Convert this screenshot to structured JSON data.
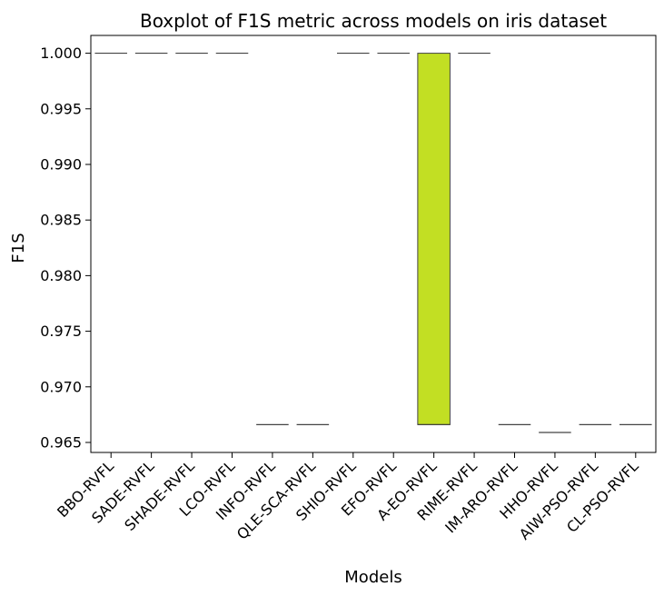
{
  "chart_data": {
    "type": "boxplot",
    "title": "Boxplot of F1S metric across models on iris dataset",
    "xlabel": "Models",
    "ylabel": "F1S",
    "ylim": [
      0.9641,
      1.0016
    ],
    "yticks": [
      1.0,
      0.995,
      0.99,
      0.985,
      0.98,
      0.975,
      0.97,
      0.965
    ],
    "ytick_labels": [
      "1.000",
      "0.995",
      "0.990",
      "0.985",
      "0.980",
      "0.975",
      "0.970",
      "0.965"
    ],
    "grid": false,
    "legend": "none",
    "categories": [
      "BBO-RVFL",
      "SADE-RVFL",
      "SHADE-RVFL",
      "LCO-RVFL",
      "INFO-RVFL",
      "QLE-SCA-RVFL",
      "SHIO-RVFL",
      "EFO-RVFL",
      "A-EO-RVFL",
      "RIME-RVFL",
      "IM-ARO-RVFL",
      "HHO-RVFL",
      "AIW-PSO-RVFL",
      "CL-PSO-RVFL"
    ],
    "colors": [
      "#1f9e89",
      "#26a784",
      "#35b779",
      "#48c16e",
      "#5ec962",
      "#75d054",
      "#8fd744",
      "#a8db34",
      "#c2df23",
      "#dde318",
      "#d9ea80",
      "#d6e67a",
      "#d8e8a0",
      "#e2ec9a"
    ],
    "boxes": [
      {
        "min": 1.0,
        "q1": 1.0,
        "median": 1.0,
        "q3": 1.0,
        "max": 1.0
      },
      {
        "min": 1.0,
        "q1": 1.0,
        "median": 1.0,
        "q3": 1.0,
        "max": 1.0
      },
      {
        "min": 1.0,
        "q1": 1.0,
        "median": 1.0,
        "q3": 1.0,
        "max": 1.0
      },
      {
        "min": 1.0,
        "q1": 1.0,
        "median": 1.0,
        "q3": 1.0,
        "max": 1.0
      },
      {
        "min": 0.9666,
        "q1": 0.9666,
        "median": 0.9666,
        "q3": 0.9666,
        "max": 0.9666
      },
      {
        "min": 0.9666,
        "q1": 0.9666,
        "median": 0.9666,
        "q3": 0.9666,
        "max": 0.9666
      },
      {
        "min": 1.0,
        "q1": 1.0,
        "median": 1.0,
        "q3": 1.0,
        "max": 1.0
      },
      {
        "min": 1.0,
        "q1": 1.0,
        "median": 1.0,
        "q3": 1.0,
        "max": 1.0
      },
      {
        "min": 0.9666,
        "q1": 0.9666,
        "median": 0.9666,
        "q3": 1.0,
        "max": 1.0
      },
      {
        "min": 1.0,
        "q1": 1.0,
        "median": 1.0,
        "q3": 1.0,
        "max": 1.0
      },
      {
        "min": 0.9666,
        "q1": 0.9666,
        "median": 0.9666,
        "q3": 0.9666,
        "max": 0.9666
      },
      {
        "min": 0.9659,
        "q1": 0.9659,
        "median": 0.9659,
        "q3": 0.9659,
        "max": 0.9659
      },
      {
        "min": 0.9666,
        "q1": 0.9666,
        "median": 0.9666,
        "q3": 0.9666,
        "max": 0.9666
      },
      {
        "min": 0.9666,
        "q1": 0.9666,
        "median": 0.9666,
        "q3": 0.9666,
        "max": 0.9666
      }
    ]
  }
}
